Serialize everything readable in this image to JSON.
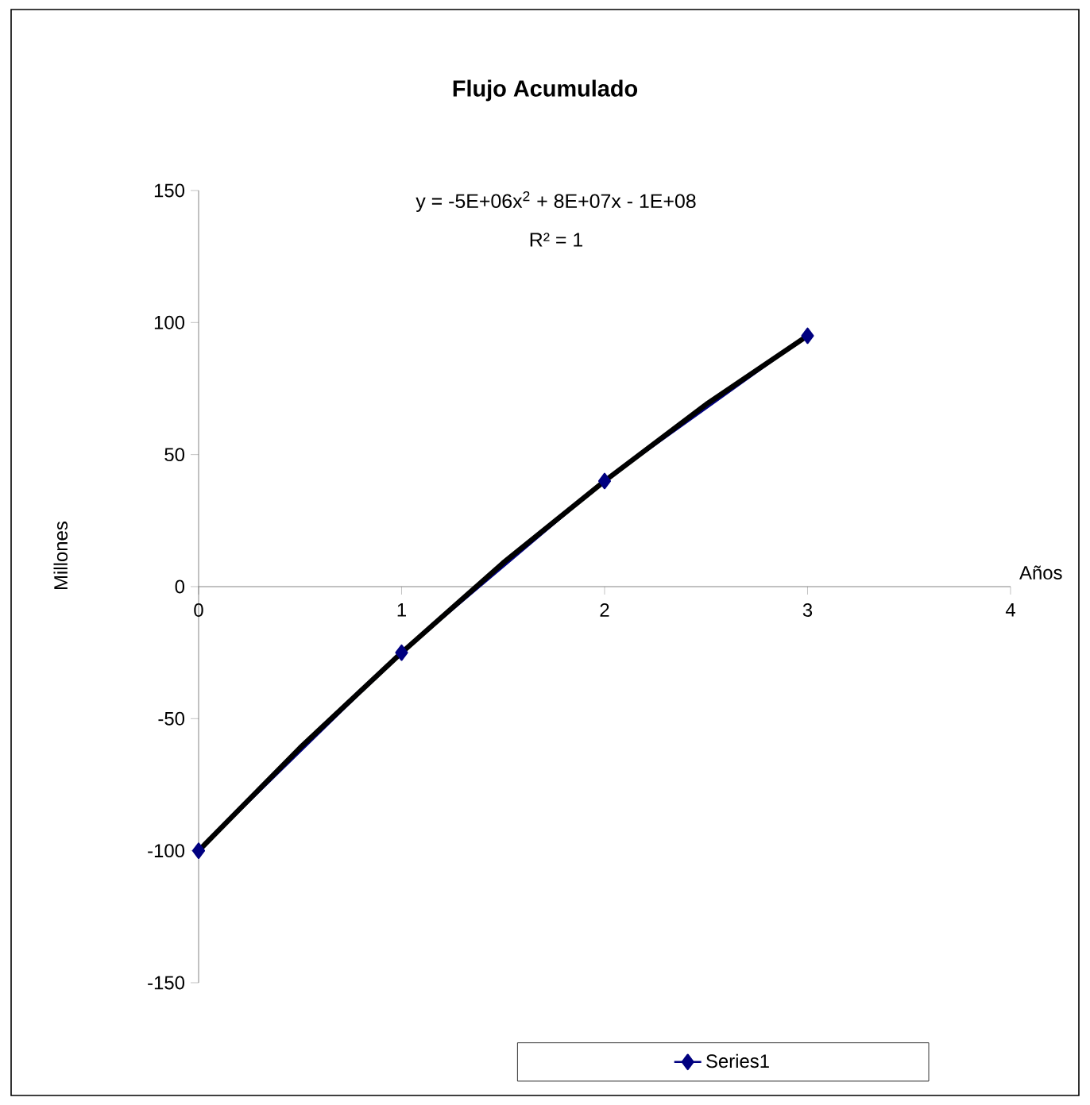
{
  "chart_data": {
    "type": "line",
    "title": "Flujo Acumulado",
    "xlabel": "Años",
    "ylabel": "Millones",
    "annotations": [
      "y = -5E+06x$^{2}$ + 8E+07x - 1E+08",
      "R² = 1"
    ],
    "x": [
      0,
      1,
      2,
      3
    ],
    "series": [
      {
        "name": "Series1",
        "color": "#000080",
        "values": [
          -100,
          -25,
          40,
          95
        ],
        "marker": "diamond",
        "line_style": "solid"
      },
      {
        "type": "line",
        "color": "#000000",
        "x": [
          0,
          0.5,
          1,
          1.5,
          2,
          2.5,
          3
        ],
        "values": [
          -100,
          -61,
          -25,
          9,
          40,
          69,
          95
        ],
        "marker": "none"
      }
    ],
    "xlim": [
      0,
      4
    ],
    "xticks": [
      0,
      1,
      2,
      3,
      4
    ],
    "ylim": [
      -150,
      150
    ],
    "yticks": [
      -150,
      -100,
      -50,
      0,
      50,
      100,
      150
    ],
    "grid": false,
    "legend": "bottom"
  }
}
